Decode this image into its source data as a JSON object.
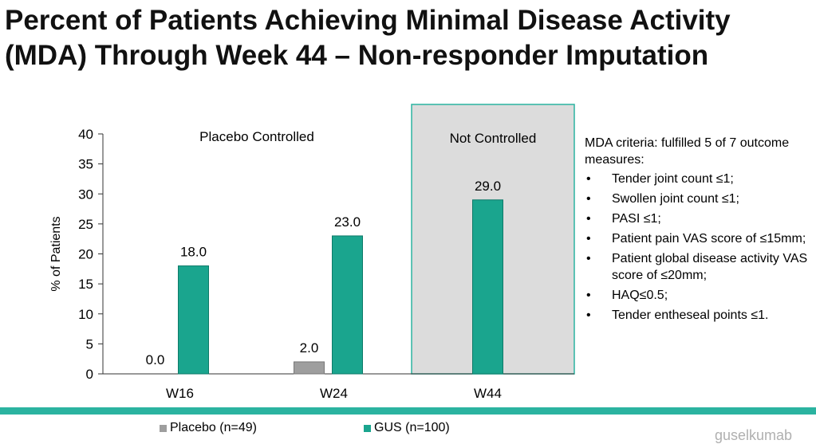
{
  "title": "Percent of Patients Achieving Minimal Disease Activity (MDA) Through Week 44 – Non-responder Imputation",
  "chart_data": {
    "type": "bar",
    "categories": [
      "W16",
      "W24",
      "W44"
    ],
    "series": [
      {
        "name": "Placebo (n=49)",
        "values": [
          0.0,
          2.0,
          null
        ],
        "labels": [
          "0.0",
          "2.0",
          ""
        ],
        "color": "#9e9e9e"
      },
      {
        "name": "GUS (n=100)",
        "values": [
          18.0,
          23.0,
          29.0
        ],
        "labels": [
          "18.0",
          "23.0",
          "29.0"
        ],
        "color": "#1aa58e"
      }
    ],
    "ylabel": "% of Patients",
    "ylim": [
      0,
      40
    ],
    "yticks": [
      0,
      5,
      10,
      15,
      20,
      25,
      30,
      35,
      40
    ],
    "regions": [
      "Placebo Controlled",
      "Not Controlled"
    ],
    "grid": false,
    "legend_position": "bottom"
  },
  "criteria": {
    "heading": "MDA criteria: fulfilled 5 of 7 outcome measures:",
    "bullet": "•",
    "items": [
      "Tender joint count ≤1;",
      "Swollen joint count ≤1;",
      "PASI ≤1;",
      "Patient pain VAS score of ≤15mm;",
      "Patient global disease activity VAS score of ≤20mm;",
      "HAQ≤0.5;",
      "Tender entheseal points ≤1."
    ]
  },
  "legend": {
    "placebo": "Placebo (n=49)",
    "gus": "GUS (n=100)"
  },
  "colors": {
    "gus": "#1aa58e",
    "placebo": "#9e9e9e",
    "shade": "#dcdcdc",
    "accent": "#2bb3a0"
  },
  "watermark": "guselkumab"
}
